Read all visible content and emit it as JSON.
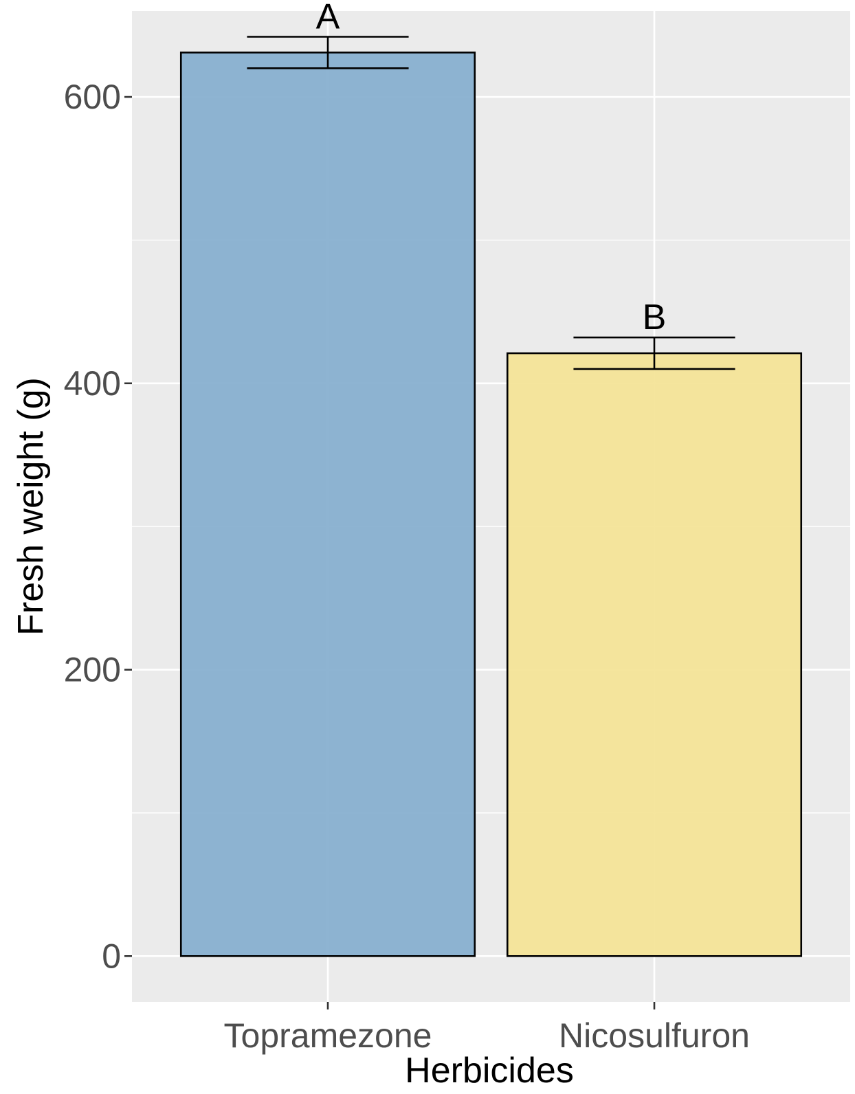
{
  "chart_data": {
    "type": "bar",
    "xlabel": "Herbicides",
    "ylabel": "Fresh weight (g)",
    "ylim": [
      -32,
      660
    ],
    "y_ticks": [
      0,
      200,
      400,
      600
    ],
    "grid": true,
    "categories": [
      "Topramezone",
      "Nicosulfuron"
    ],
    "values": [
      631,
      421
    ],
    "errors": [
      11,
      11
    ],
    "significance_labels": [
      "A",
      "B"
    ],
    "colors": [
      "#85aecf",
      "#f4e396"
    ],
    "panel_background": "#ebebeb",
    "gridline_color": "#ffffff"
  }
}
